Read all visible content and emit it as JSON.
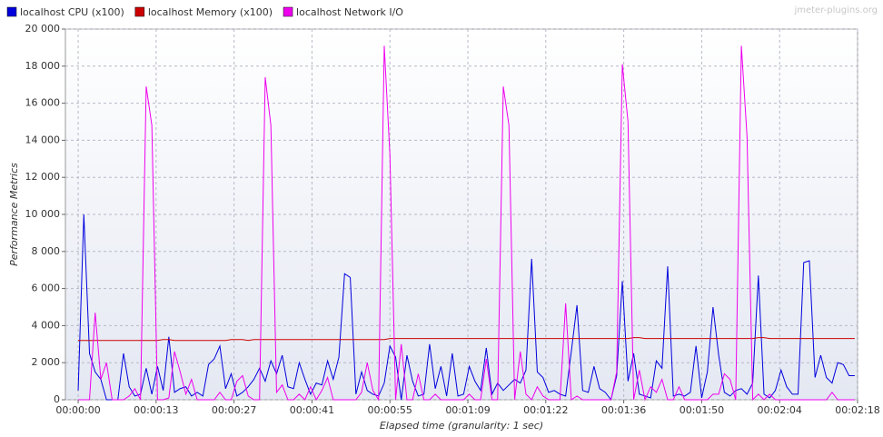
{
  "chart_data": {
    "type": "line",
    "watermark": "jmeter-plugins.org",
    "xlabel": "Elapsed time (granularity: 1 sec)",
    "ylabel": "Performance Metrics",
    "xlim": [
      -2.25,
      137.5
    ],
    "ylim": [
      0,
      20000
    ],
    "xticks": [
      {
        "value": 0,
        "label": "00:00:00"
      },
      {
        "value": 13.75,
        "label": "00:00:13"
      },
      {
        "value": 27.5,
        "label": "00:00:27"
      },
      {
        "value": 41.25,
        "label": "00:00:41"
      },
      {
        "value": 55,
        "label": "00:00:55"
      },
      {
        "value": 68.75,
        "label": "00:01:09"
      },
      {
        "value": 82.5,
        "label": "00:01:22"
      },
      {
        "value": 96.25,
        "label": "00:01:36"
      },
      {
        "value": 110,
        "label": "00:01:50"
      },
      {
        "value": 123.75,
        "label": "00:02:04"
      },
      {
        "value": 137.5,
        "label": "00:02:18"
      }
    ],
    "yticks": [
      0,
      {
        "value": 2000,
        "label": "2 000"
      },
      {
        "value": 4000,
        "label": "4 000"
      },
      {
        "value": 6000,
        "label": "6 000"
      },
      {
        "value": 8000,
        "label": "8 000"
      },
      {
        "value": 10000,
        "label": "10 000"
      },
      {
        "value": 12000,
        "label": "12 000"
      },
      {
        "value": 14000,
        "label": "14 000"
      },
      {
        "value": 16000,
        "label": "16 000"
      },
      {
        "value": 18000,
        "label": "18 000"
      },
      {
        "value": 20000,
        "label": "20 000"
      }
    ],
    "grid": true,
    "x": [
      0,
      1,
      2,
      3,
      4,
      5,
      6,
      7,
      8,
      9,
      10,
      11,
      12,
      13,
      14,
      15,
      16,
      17,
      18,
      19,
      20,
      21,
      22,
      23,
      24,
      25,
      26,
      27,
      28,
      29,
      30,
      31,
      32,
      33,
      34,
      35,
      36,
      37,
      38,
      39,
      40,
      41,
      42,
      43,
      44,
      45,
      46,
      47,
      48,
      49,
      50,
      51,
      52,
      53,
      54,
      55,
      56,
      57,
      58,
      59,
      60,
      61,
      62,
      63,
      64,
      65,
      66,
      67,
      68,
      69,
      70,
      71,
      72,
      73,
      74,
      75,
      76,
      77,
      78,
      79,
      80,
      81,
      82,
      83,
      84,
      85,
      86,
      87,
      88,
      89,
      90,
      91,
      92,
      93,
      94,
      95,
      96,
      97,
      98,
      99,
      100,
      101,
      102,
      103,
      104,
      105,
      106,
      107,
      108,
      109,
      110,
      111,
      112,
      113,
      114,
      115,
      116,
      117,
      118,
      119,
      120,
      121,
      122,
      123,
      124,
      125,
      126,
      127,
      128,
      129,
      130,
      131,
      132,
      133,
      134,
      135,
      136,
      137
    ],
    "series": [
      {
        "name": "localhost CPU (x100)",
        "color": "#0000dd",
        "values": [
          500,
          10000,
          2500,
          1500,
          1100,
          0,
          0,
          0,
          2500,
          700,
          200,
          300,
          1700,
          300,
          1800,
          500,
          3400,
          400,
          600,
          700,
          200,
          400,
          200,
          1900,
          2200,
          2900,
          600,
          1400,
          200,
          400,
          700,
          1100,
          1700,
          1000,
          2100,
          1400,
          2400,
          700,
          600,
          2000,
          1100,
          300,
          900,
          800,
          2100,
          1100,
          2300,
          6800,
          6600,
          300,
          1500,
          500,
          300,
          200,
          900,
          2900,
          2300,
          0,
          2400,
          1000,
          200,
          300,
          3000,
          600,
          1800,
          200,
          2500,
          200,
          300,
          1800,
          1000,
          500,
          2800,
          300,
          900,
          500,
          800,
          1100,
          900,
          1600,
          7600,
          1500,
          1200,
          400,
          500,
          300,
          200,
          2600,
          5100,
          500,
          400,
          1800,
          600,
          400,
          0,
          1300,
          6400,
          1000,
          2500,
          300,
          200,
          100,
          2100,
          1700,
          7200,
          200,
          300,
          200,
          400,
          2900,
          100,
          1500,
          5000,
          2400,
          400,
          200,
          500,
          600,
          300,
          900,
          6700,
          300,
          100,
          500,
          1600,
          700,
          300,
          300,
          7400,
          7500,
          1200,
          2400,
          1200,
          900,
          2000,
          1900,
          1300,
          1300
        ]
      },
      {
        "name": "localhost Memory (x100)",
        "color": "#cc0000",
        "values": [
          3200,
          3200,
          3200,
          3200,
          3200,
          3200,
          3200,
          3200,
          3200,
          3200,
          3200,
          3200,
          3200,
          3200,
          3200,
          3250,
          3250,
          3200,
          3200,
          3200,
          3200,
          3200,
          3200,
          3200,
          3200,
          3200,
          3200,
          3250,
          3250,
          3250,
          3200,
          3250,
          3250,
          3250,
          3250,
          3250,
          3250,
          3250,
          3250,
          3250,
          3250,
          3250,
          3250,
          3250,
          3250,
          3250,
          3250,
          3250,
          3250,
          3250,
          3250,
          3250,
          3250,
          3250,
          3250,
          3300,
          3300,
          3300,
          3300,
          3300,
          3300,
          3300,
          3300,
          3300,
          3300,
          3300,
          3300,
          3300,
          3300,
          3300,
          3300,
          3300,
          3300,
          3300,
          3300,
          3300,
          3300,
          3300,
          3300,
          3300,
          3300,
          3300,
          3300,
          3300,
          3300,
          3300,
          3300,
          3300,
          3300,
          3300,
          3300,
          3300,
          3300,
          3300,
          3300,
          3300,
          3300,
          3300,
          3350,
          3350,
          3300,
          3300,
          3300,
          3300,
          3300,
          3300,
          3300,
          3300,
          3300,
          3300,
          3300,
          3300,
          3300,
          3300,
          3300,
          3300,
          3300,
          3300,
          3300,
          3300,
          3350,
          3350,
          3300,
          3300,
          3300,
          3300,
          3300,
          3300,
          3300,
          3300,
          3300,
          3300,
          3300,
          3300,
          3300,
          3300,
          3300,
          3300
        ]
      },
      {
        "name": "localhost Network I/O",
        "color": "#ee00ee",
        "values": [
          0,
          0,
          0,
          4700,
          1100,
          2000,
          0,
          0,
          0,
          200,
          600,
          0,
          16900,
          14800,
          0,
          0,
          100,
          2600,
          1500,
          300,
          1100,
          0,
          0,
          0,
          0,
          400,
          0,
          0,
          1000,
          1300,
          200,
          0,
          0,
          17400,
          14800,
          400,
          800,
          0,
          0,
          300,
          0,
          700,
          0,
          500,
          1200,
          0,
          0,
          0,
          0,
          0,
          400,
          2000,
          500,
          0,
          19100,
          13200,
          0,
          3000,
          0,
          0,
          1400,
          0,
          0,
          300,
          0,
          0,
          0,
          0,
          0,
          300,
          0,
          0,
          2200,
          0,
          0,
          16900,
          14800,
          0,
          2600,
          300,
          0,
          700,
          200,
          0,
          0,
          0,
          5200,
          0,
          200,
          0,
          0,
          0,
          0,
          0,
          0,
          1500,
          18100,
          15000,
          0,
          1600,
          0,
          700,
          400,
          1100,
          0,
          0,
          700,
          0,
          0,
          0,
          0,
          0,
          300,
          300,
          1400,
          1100,
          0,
          19100,
          14200,
          0,
          300,
          0,
          300,
          0,
          0,
          0,
          0,
          0,
          0,
          0,
          0,
          0,
          0,
          400,
          0,
          0,
          0,
          0
        ]
      }
    ]
  }
}
